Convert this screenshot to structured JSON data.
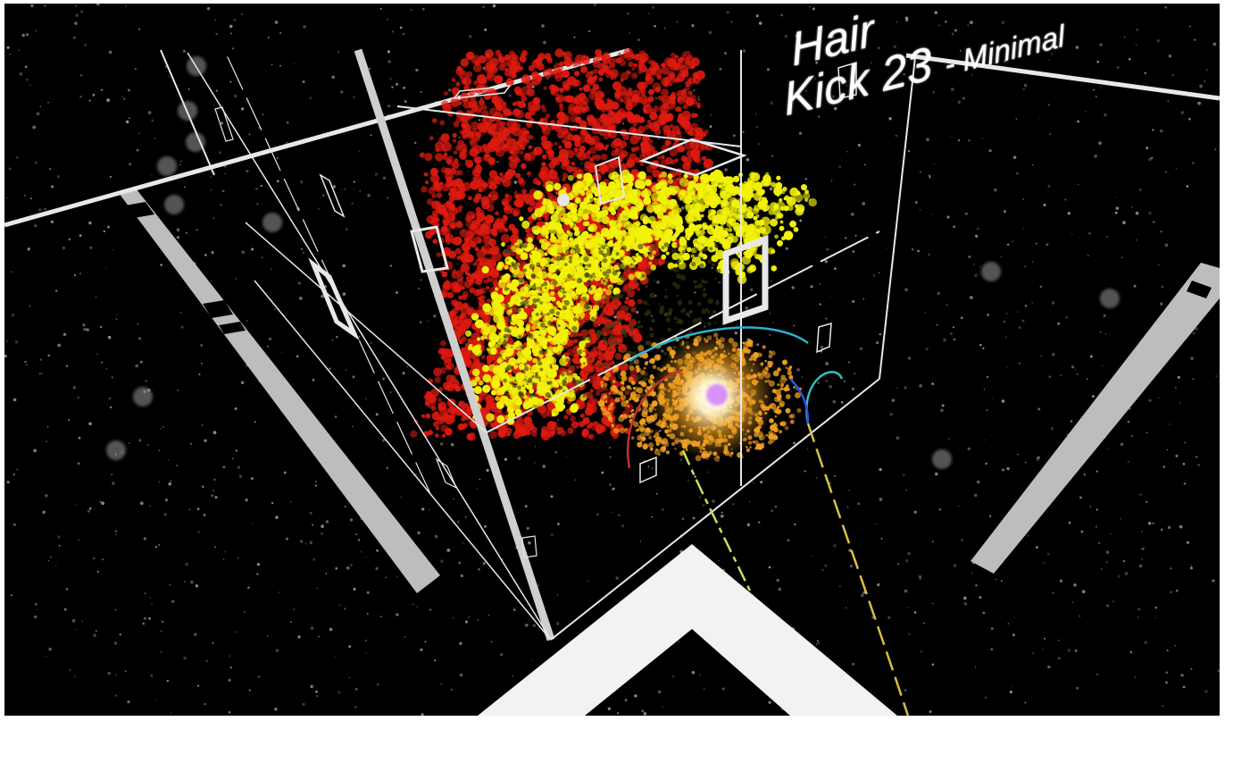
{
  "scene": {
    "kind": "3d-particle-visualization",
    "caption_line_1": "Hair",
    "caption_line_2": "Kick 23",
    "caption_line_2_suffix": "- Minimal",
    "colors": {
      "background": "#000000",
      "frame_border": "#ffffff",
      "red_cloud": "#e01a10",
      "yellow_cloud": "#f2f20a",
      "orange_core": "#f0a020",
      "glow_core": "#ffffff",
      "wireframe": "#e8e8e8",
      "bar": "#bdbdbd",
      "starfield": "#b5b5b5"
    },
    "icons": [
      "chevron-up-icon",
      "left-bar-icon",
      "right-bar-icon"
    ]
  }
}
